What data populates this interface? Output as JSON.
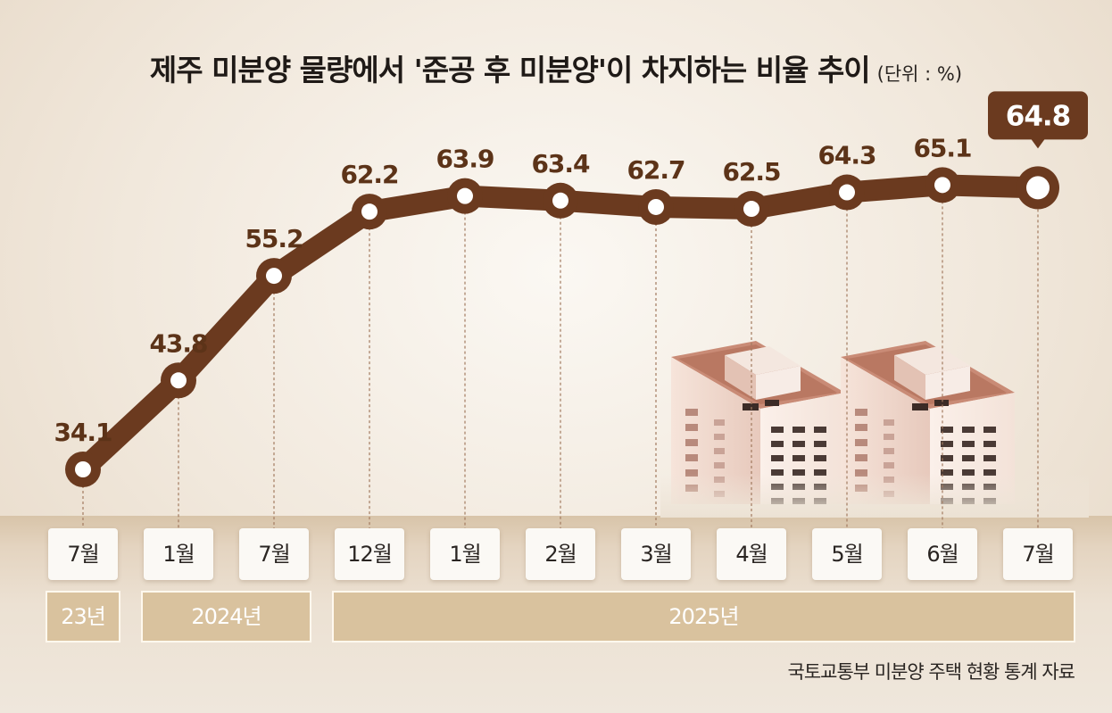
{
  "title": "제주 미분양 물량에서 '준공 후 미분양'이 차지하는 비율 추이",
  "unit": "(단위 : %)",
  "source": "국토교통부 미분양 주택 현황 통계 자료",
  "colors": {
    "line": "#6b3a1f",
    "label": "#5c3318",
    "year_bar": "#d9c29e",
    "callout": "#6b3a1f"
  },
  "chart_data": {
    "type": "line",
    "title": "제주 미분양 물량에서 '준공 후 미분양'이 차지하는 비율 추이",
    "ylabel": "",
    "unit": "%",
    "categories": [
      "7월",
      "1월",
      "7월",
      "12월",
      "1월",
      "2월",
      "3월",
      "4월",
      "5월",
      "6월",
      "7월"
    ],
    "values": [
      34.1,
      43.8,
      55.2,
      62.2,
      63.9,
      63.4,
      62.7,
      62.5,
      64.3,
      65.1,
      64.8
    ],
    "labels": [
      "34.1",
      "43.8",
      "55.2",
      "62.2",
      "63.9",
      "63.4",
      "62.7",
      "62.5",
      "64.3",
      "65.1",
      "64.8"
    ],
    "highlight_index": 10,
    "years": [
      {
        "label": "23년",
        "from": 0,
        "to": 0
      },
      {
        "label": "2024년",
        "from": 1,
        "to": 2
      },
      {
        "label": "2025년",
        "from": 3,
        "to": 10
      }
    ],
    "grid": false,
    "legend": "none"
  }
}
